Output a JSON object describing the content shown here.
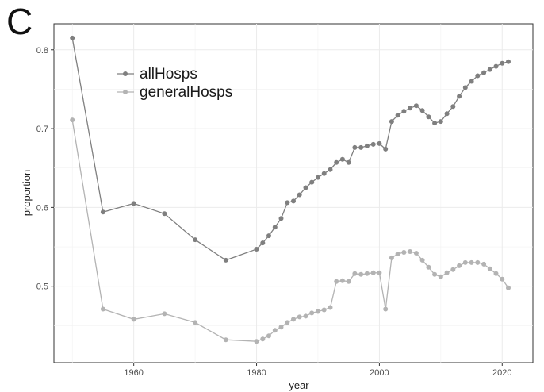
{
  "panel_label": "C",
  "chart_data": {
    "type": "line",
    "xlabel": "year",
    "ylabel": "proportion",
    "xlim": [
      1947,
      2025
    ],
    "ylim": [
      0.403,
      0.833
    ],
    "x_ticks": [
      1960,
      1980,
      2000,
      2020
    ],
    "y_ticks": [
      0.5,
      0.6,
      0.7,
      0.8
    ],
    "x_tick_labels": [
      "1960",
      "1980",
      "2000",
      "2020"
    ],
    "y_tick_labels": [
      "0.5",
      "0.6",
      "0.7",
      "0.8"
    ],
    "grid": true,
    "legend_position": "top-left",
    "series": [
      {
        "name": "allHosps",
        "color": "#7f7f7f",
        "points": [
          [
            1950,
            0.815
          ],
          [
            1955,
            0.594
          ],
          [
            1960,
            0.605
          ],
          [
            1965,
            0.592
          ],
          [
            1970,
            0.559
          ],
          [
            1975,
            0.533
          ],
          [
            1980,
            0.547
          ],
          [
            1981,
            0.555
          ],
          [
            1982,
            0.564
          ],
          [
            1983,
            0.575
          ],
          [
            1984,
            0.586
          ],
          [
            1985,
            0.606
          ],
          [
            1986,
            0.608
          ],
          [
            1987,
            0.616
          ],
          [
            1988,
            0.625
          ],
          [
            1989,
            0.632
          ],
          [
            1990,
            0.638
          ],
          [
            1991,
            0.643
          ],
          [
            1992,
            0.648
          ],
          [
            1993,
            0.657
          ],
          [
            1994,
            0.661
          ],
          [
            1995,
            0.657
          ],
          [
            1996,
            0.676
          ],
          [
            1997,
            0.676
          ],
          [
            1998,
            0.678
          ],
          [
            1999,
            0.68
          ],
          [
            2000,
            0.681
          ],
          [
            2001,
            0.674
          ],
          [
            2002,
            0.709
          ],
          [
            2003,
            0.717
          ],
          [
            2004,
            0.722
          ],
          [
            2005,
            0.726
          ],
          [
            2006,
            0.729
          ],
          [
            2007,
            0.723
          ],
          [
            2008,
            0.715
          ],
          [
            2009,
            0.707
          ],
          [
            2010,
            0.709
          ],
          [
            2011,
            0.719
          ],
          [
            2012,
            0.728
          ],
          [
            2013,
            0.741
          ],
          [
            2014,
            0.752
          ],
          [
            2015,
            0.76
          ],
          [
            2016,
            0.767
          ],
          [
            2017,
            0.771
          ],
          [
            2018,
            0.775
          ],
          [
            2019,
            0.779
          ],
          [
            2020,
            0.783
          ],
          [
            2021,
            0.785
          ]
        ]
      },
      {
        "name": "generalHosps",
        "color": "#b3b3b3",
        "points": [
          [
            1950,
            0.711
          ],
          [
            1955,
            0.471
          ],
          [
            1960,
            0.458
          ],
          [
            1965,
            0.465
          ],
          [
            1970,
            0.454
          ],
          [
            1975,
            0.432
          ],
          [
            1980,
            0.43
          ],
          [
            1981,
            0.433
          ],
          [
            1982,
            0.437
          ],
          [
            1983,
            0.444
          ],
          [
            1984,
            0.448
          ],
          [
            1985,
            0.454
          ],
          [
            1986,
            0.458
          ],
          [
            1987,
            0.461
          ],
          [
            1988,
            0.462
          ],
          [
            1989,
            0.466
          ],
          [
            1990,
            0.468
          ],
          [
            1991,
            0.47
          ],
          [
            1992,
            0.473
          ],
          [
            1993,
            0.506
          ],
          [
            1994,
            0.507
          ],
          [
            1995,
            0.506
          ],
          [
            1996,
            0.516
          ],
          [
            1997,
            0.515
          ],
          [
            1998,
            0.516
          ],
          [
            1999,
            0.517
          ],
          [
            2000,
            0.517
          ],
          [
            2001,
            0.471
          ],
          [
            2002,
            0.536
          ],
          [
            2003,
            0.541
          ],
          [
            2004,
            0.543
          ],
          [
            2005,
            0.544
          ],
          [
            2006,
            0.542
          ],
          [
            2007,
            0.533
          ],
          [
            2008,
            0.524
          ],
          [
            2009,
            0.515
          ],
          [
            2010,
            0.512
          ],
          [
            2011,
            0.517
          ],
          [
            2012,
            0.521
          ],
          [
            2013,
            0.526
          ],
          [
            2014,
            0.53
          ],
          [
            2015,
            0.53
          ],
          [
            2016,
            0.53
          ],
          [
            2017,
            0.528
          ],
          [
            2018,
            0.522
          ],
          [
            2019,
            0.516
          ],
          [
            2020,
            0.509
          ],
          [
            2021,
            0.498
          ]
        ]
      }
    ]
  }
}
